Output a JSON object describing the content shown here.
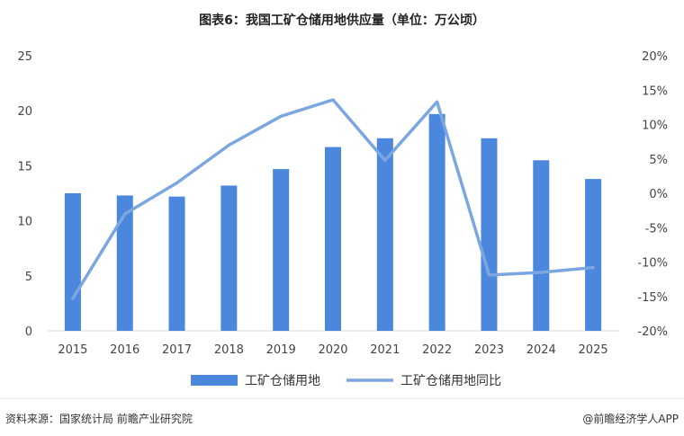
{
  "title": "图表6：我国工矿仓储用地供应量（单位：万公顷）",
  "source": "资料来源：国家统计局 前瞻产业研究院",
  "brand": "@前瞻经济学人APP",
  "colors": {
    "bar": "#4A87DD",
    "line": "#7BA6E0",
    "axis": "#d9d9d9",
    "tick": "#444444"
  },
  "chart_data": {
    "type": "bar",
    "categories": [
      "2015",
      "2016",
      "2017",
      "2018",
      "2019",
      "2020",
      "2021",
      "2022",
      "2023",
      "2024",
      "2025"
    ],
    "series": [
      {
        "name": "工矿仓储用地",
        "type": "bar",
        "axis": "left",
        "values": [
          12.5,
          12.3,
          12.2,
          13.2,
          14.7,
          16.7,
          17.5,
          19.7,
          17.5,
          15.5,
          13.8
        ]
      },
      {
        "name": "工矿仓储用地同比",
        "type": "line",
        "axis": "right",
        "values": [
          -15.3,
          -3.0,
          1.5,
          7.0,
          11.2,
          13.6,
          4.8,
          13.3,
          -11.9,
          -11.5,
          -10.8
        ]
      }
    ],
    "y_left": {
      "lim": [
        0,
        25
      ],
      "ticks": [
        0,
        5,
        10,
        15,
        20,
        25
      ],
      "tick_labels": [
        "0",
        "5",
        "10",
        "15",
        "20",
        "25"
      ]
    },
    "y_right": {
      "lim": [
        -20,
        20
      ],
      "ticks": [
        -20,
        -15,
        -10,
        -5,
        0,
        5,
        10,
        15,
        20
      ],
      "tick_labels": [
        "-20%",
        "-15%",
        "-10%",
        "-5%",
        "0%",
        "5%",
        "10%",
        "15%",
        "20%"
      ]
    },
    "grid": false,
    "legend_position": "bottom"
  }
}
